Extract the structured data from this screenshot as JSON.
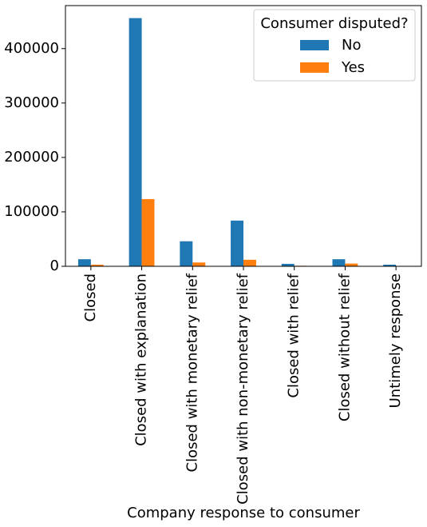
{
  "chart_data": {
    "type": "bar",
    "xlabel": "Company response to consumer",
    "categories": [
      "Closed",
      "Closed with explanation",
      "Closed with monetary relief",
      "Closed with non-monetary relief",
      "Closed with relief",
      "Closed without relief",
      "Untimely response"
    ],
    "series": [
      {
        "name": "No",
        "color": "#1f77b4",
        "values": [
          13000,
          456000,
          46000,
          84000,
          4500,
          13000,
          3000
        ]
      },
      {
        "name": "Yes",
        "color": "#ff7f0e",
        "values": [
          3000,
          123500,
          7000,
          12000,
          1000,
          5000,
          300
        ]
      }
    ],
    "ylim": [
      0,
      479000
    ],
    "yticks": [
      0,
      100000,
      200000,
      300000,
      400000
    ],
    "legend": {
      "title": "Consumer disputed?",
      "position": "upper right"
    }
  }
}
